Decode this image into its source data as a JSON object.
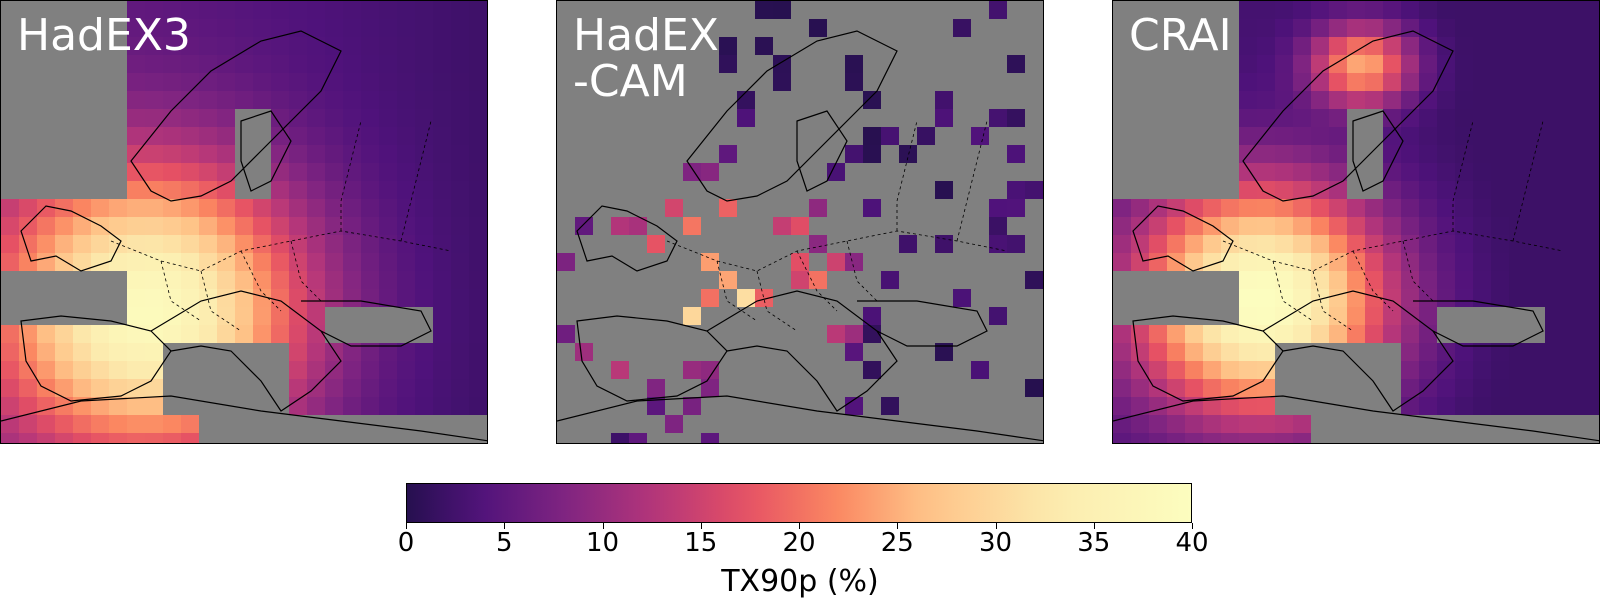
{
  "panels": [
    {
      "title": "HadEX3"
    },
    {
      "title": "HadEX\n-CAM"
    },
    {
      "title": "CRAI"
    }
  ],
  "colorbar": {
    "label": "TX90p (%)",
    "min": 0,
    "max": 40,
    "ticks": [
      "0",
      "5",
      "10",
      "15",
      "20",
      "25",
      "30",
      "35",
      "40"
    ],
    "colormap": "magma"
  },
  "colors": {
    "missing": "#808080",
    "coastline": "#000000"
  }
}
